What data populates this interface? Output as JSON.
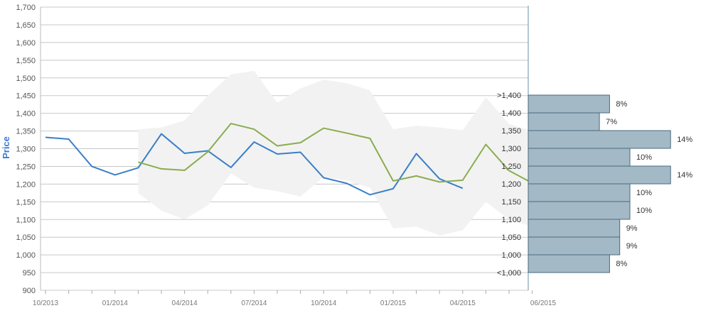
{
  "chart_data": {
    "type": "line",
    "ylabel": "Price",
    "ylim": [
      900,
      1700
    ],
    "yticks": [
      900,
      950,
      1000,
      1050,
      1100,
      1150,
      1200,
      1250,
      1300,
      1350,
      1400,
      1450,
      1500,
      1550,
      1600,
      1650,
      1700
    ],
    "ytick_labels": [
      "900",
      "950",
      "1,000",
      "1,050",
      "1,100",
      "1,150",
      "1,200",
      "1,250",
      "1,300",
      "1,350",
      "1,400",
      "1,450",
      "1,500",
      "1,550",
      "1,600",
      "1,650",
      "1,700"
    ],
    "x_tick_labels": [
      "10/2013",
      "01/2014",
      "04/2014",
      "07/2014",
      "10/2014",
      "01/2015",
      "04/2015",
      "06/2015"
    ],
    "grid": true,
    "colors": {
      "series_blue": "#3a7fc7",
      "series_green": "#8aac4e",
      "band": "#f2f2f2",
      "histogram_fill": "#a3b9c6",
      "histogram_stroke": "#4a6a80",
      "divider": "#6a8fa8",
      "grid": "#c8c8c8"
    },
    "series": [
      {
        "values": [
          1332,
          1327,
          1250,
          1226,
          1246,
          1342,
          1287,
          1294,
          1247,
          1319,
          1285,
          1290,
          1218,
          1202,
          1170,
          1187,
          1286,
          1215,
          1188
        ]
      },
      {
        "values": [
          null,
          null,
          null,
          null,
          1262,
          1243,
          1239,
          1291,
          1371,
          1355,
          1308,
          1317,
          1358,
          1344,
          1329,
          1209,
          1223,
          1206,
          1211,
          1312,
          1238,
          1203
        ]
      }
    ],
    "band": {
      "upper": [
        null,
        null,
        null,
        null,
        1355,
        1360,
        1380,
        1450,
        1510,
        1520,
        1430,
        1470,
        1495,
        1485,
        1465,
        1355,
        1365,
        1360,
        1352,
        1445,
        1370,
        1350
      ],
      "lower": [
        null,
        null,
        null,
        null,
        1175,
        1125,
        1100,
        1140,
        1230,
        1190,
        1180,
        1165,
        1220,
        1210,
        1190,
        1075,
        1080,
        1055,
        1070,
        1150,
        1100,
        1080
      ]
    },
    "histogram": {
      "bins": [
        {
          "label": ">1,400",
          "pct": "8%",
          "value": 8
        },
        {
          "label": "1,400",
          "pct": "7%",
          "value": 7
        },
        {
          "label": "1,350",
          "pct": "14%",
          "value": 14
        },
        {
          "label": "1,300",
          "pct": "10%",
          "value": 10
        },
        {
          "label": "1,250",
          "pct": "14%",
          "value": 14
        },
        {
          "label": "1,200",
          "pct": "10%",
          "value": 10
        },
        {
          "label": "1,150",
          "pct": "10%",
          "value": 10
        },
        {
          "label": "1,100",
          "pct": "9%",
          "value": 9
        },
        {
          "label": "1,050",
          "pct": "9%",
          "value": 9
        },
        {
          "label": "1,000",
          "pct": "8%",
          "value": 8
        },
        {
          "label": "<1,000",
          "pct": "",
          "value": null
        }
      ]
    }
  }
}
